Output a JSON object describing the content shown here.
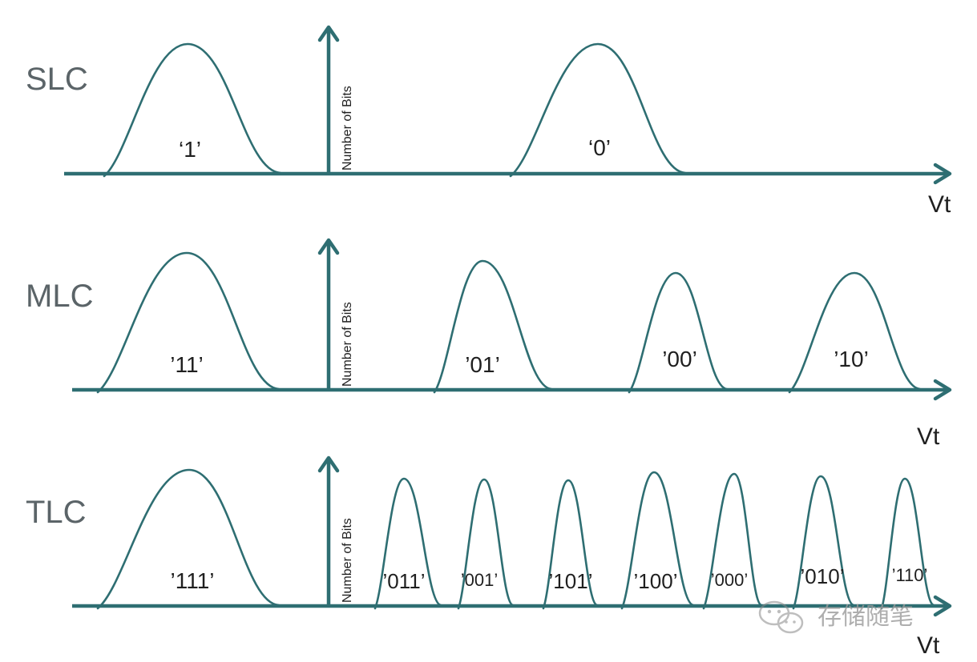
{
  "colors": {
    "curve": "#2e6e72",
    "text": "#1f1f1f",
    "row_label": "#5b6468",
    "watermark": "#9a9a9a"
  },
  "rows": [
    {
      "id": "slc",
      "label": "SLC",
      "ylabel": "Number of Bits",
      "xlabel": "Vt",
      "states": [
        "‘1’",
        "‘0’"
      ]
    },
    {
      "id": "mlc",
      "label": "MLC",
      "ylabel": "Number of Bits",
      "xlabel": "Vt",
      "states": [
        "’11’",
        "’01’",
        "’00’",
        "’10’"
      ]
    },
    {
      "id": "tlc",
      "label": "TLC",
      "ylabel": "Number of Bits",
      "xlabel": "Vt",
      "states": [
        "’111’",
        "’011’",
        "’001’",
        "’101’",
        "’100’",
        "’000’",
        "’010’",
        "’110’"
      ]
    }
  ],
  "watermark": {
    "text": "存储随笔",
    "icon": "wechat-icon"
  }
}
